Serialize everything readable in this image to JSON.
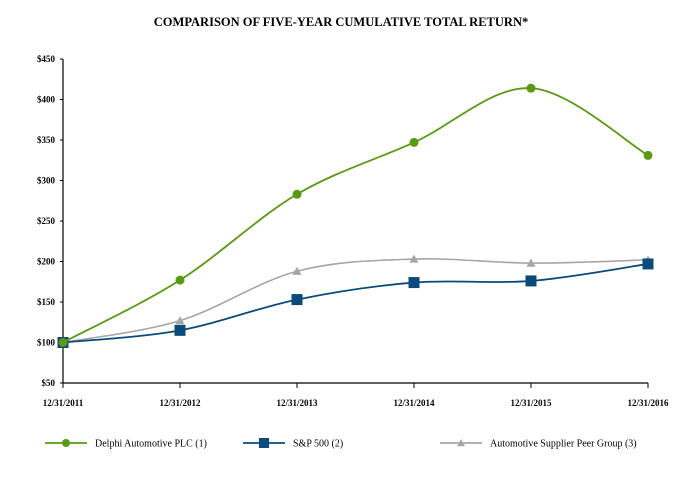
{
  "chart_data": {
    "type": "line",
    "title": "COMPARISON OF FIVE-YEAR CUMULATIVE TOTAL RETURN*",
    "xlabel": "",
    "ylabel": "",
    "categories": [
      "12/31/2011",
      "12/31/2012",
      "12/31/2013",
      "12/31/2014",
      "12/31/2015",
      "12/31/2016"
    ],
    "ylim": [
      50,
      450
    ],
    "yticks": [
      50,
      100,
      150,
      200,
      250,
      300,
      350,
      400,
      450
    ],
    "ytick_format": "$",
    "grid": false,
    "legend_placement": "bottom",
    "smooth": true,
    "series": [
      {
        "name": "Delphi Automotive PLC (1)",
        "color": "#5a9a12",
        "marker": "circle",
        "values": [
          100,
          177,
          283,
          347,
          414,
          331
        ]
      },
      {
        "name": "S&P 500 (2)",
        "color": "#0b4a7a",
        "marker": "square",
        "values": [
          100,
          115,
          153,
          174,
          176,
          197
        ]
      },
      {
        "name": "Automotive Supplier Peer Group (3)",
        "color": "#a6a6a6",
        "marker": "triangle",
        "values": [
          100,
          127,
          188,
          203,
          198,
          202
        ]
      }
    ]
  }
}
